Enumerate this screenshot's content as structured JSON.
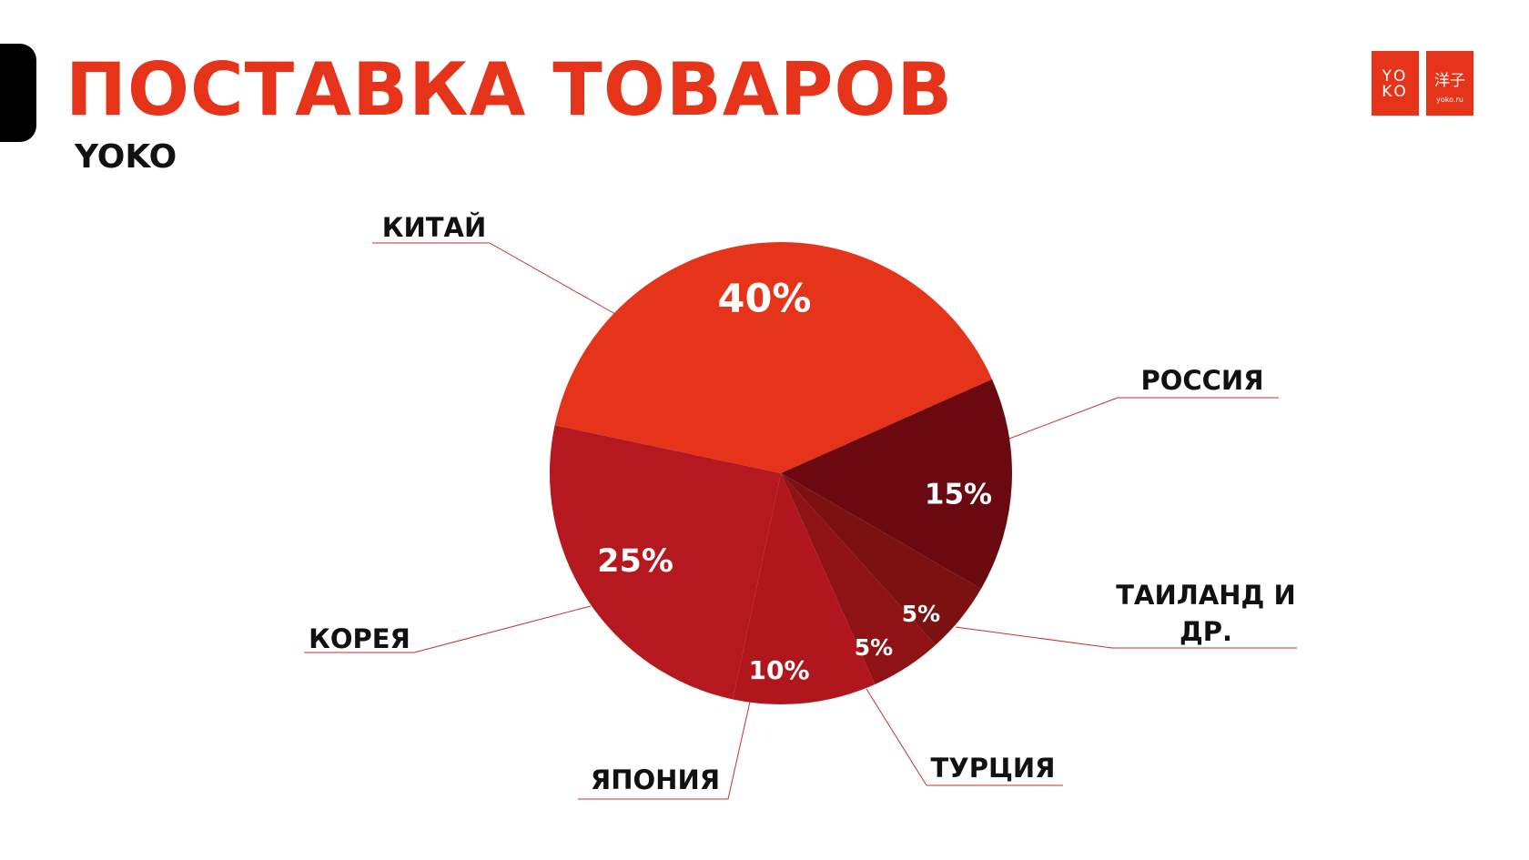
{
  "header": {
    "title": "ПОСТАВКА ТОВАРОВ",
    "subtitle": "YOKO"
  },
  "logo": {
    "mark": "YO KO",
    "kanji": "洋子",
    "site": "yoko.ru"
  },
  "chart_data": {
    "type": "pie",
    "categories": [
      "КИТАЙ",
      "РОССИЯ",
      "ТАИЛАНД И ДР.",
      "ТУРЦИЯ",
      "ЯПОНИЯ",
      "КОРЕЯ"
    ],
    "values": [
      40,
      15,
      5,
      5,
      10,
      25
    ],
    "value_labels": [
      "40%",
      "15%",
      "5%",
      "5%",
      "10%",
      "25%"
    ],
    "colors": [
      "#e5341a",
      "#6a0a10",
      "#7b1111",
      "#8f1215",
      "#b1161e",
      "#b5181f"
    ]
  }
}
